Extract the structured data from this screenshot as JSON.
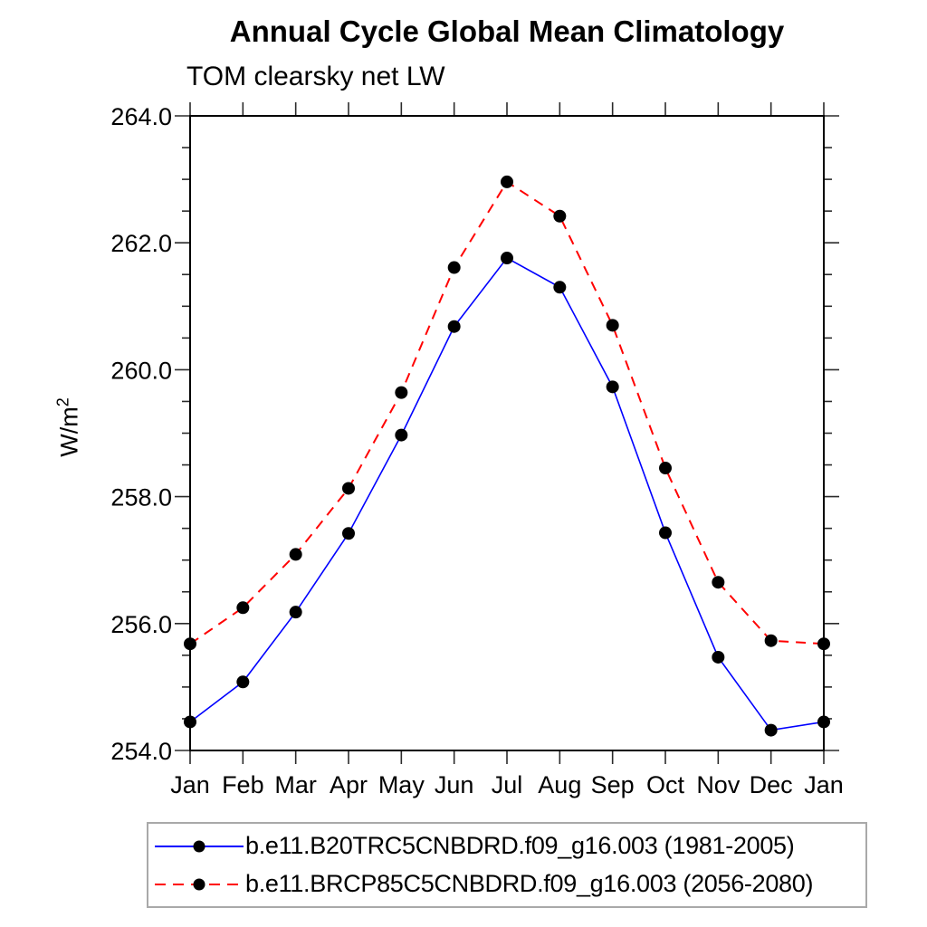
{
  "title": "Annual Cycle Global Mean Climatology",
  "subtitle": "TOM clearsky net LW",
  "y_axis_title": {
    "base": "W/m",
    "exponent": "2"
  },
  "chart_data": {
    "type": "line",
    "title": "Annual Cycle Global Mean Climatology",
    "subtitle": "TOM clearsky net LW",
    "ylabel": "W/m^2",
    "xlabel": "",
    "categories": [
      "Jan",
      "Feb",
      "Mar",
      "Apr",
      "May",
      "Jun",
      "Jul",
      "Aug",
      "Sep",
      "Oct",
      "Nov",
      "Dec",
      "Jan"
    ],
    "ylim": [
      254.0,
      264.0
    ],
    "ytick_major_labels": [
      "254.0",
      "256.0",
      "258.0",
      "260.0",
      "262.0",
      "264.0"
    ],
    "ytick_major_values": [
      254.0,
      256.0,
      258.0,
      260.0,
      262.0,
      264.0
    ],
    "ytick_minor_step": 0.5,
    "grid": false,
    "legend_position": "bottom",
    "axis_color": "#000000",
    "background_color": "#ffffff",
    "legend_border_color": "#a9a9a9",
    "marker": {
      "shape": "filled-circle",
      "color": "#000000",
      "radius": 7
    },
    "series": [
      {
        "name": "b.e11.B20TRC5CNBDRD.f09_g16.003 (1981-2005)",
        "color": "#0000ff",
        "line_style": "solid",
        "values": [
          254.45,
          255.08,
          256.18,
          257.42,
          258.97,
          260.68,
          261.76,
          261.3,
          259.73,
          257.43,
          255.47,
          254.32,
          254.45
        ]
      },
      {
        "name": "b.e11.BRCP85C5CNBDRD.f09_g16.003 (2056-2080)",
        "color": "#ff0000",
        "line_style": "dashed",
        "values": [
          255.68,
          256.25,
          257.09,
          258.13,
          259.64,
          261.61,
          262.96,
          262.42,
          260.7,
          258.45,
          256.65,
          255.73,
          255.68
        ]
      }
    ]
  }
}
